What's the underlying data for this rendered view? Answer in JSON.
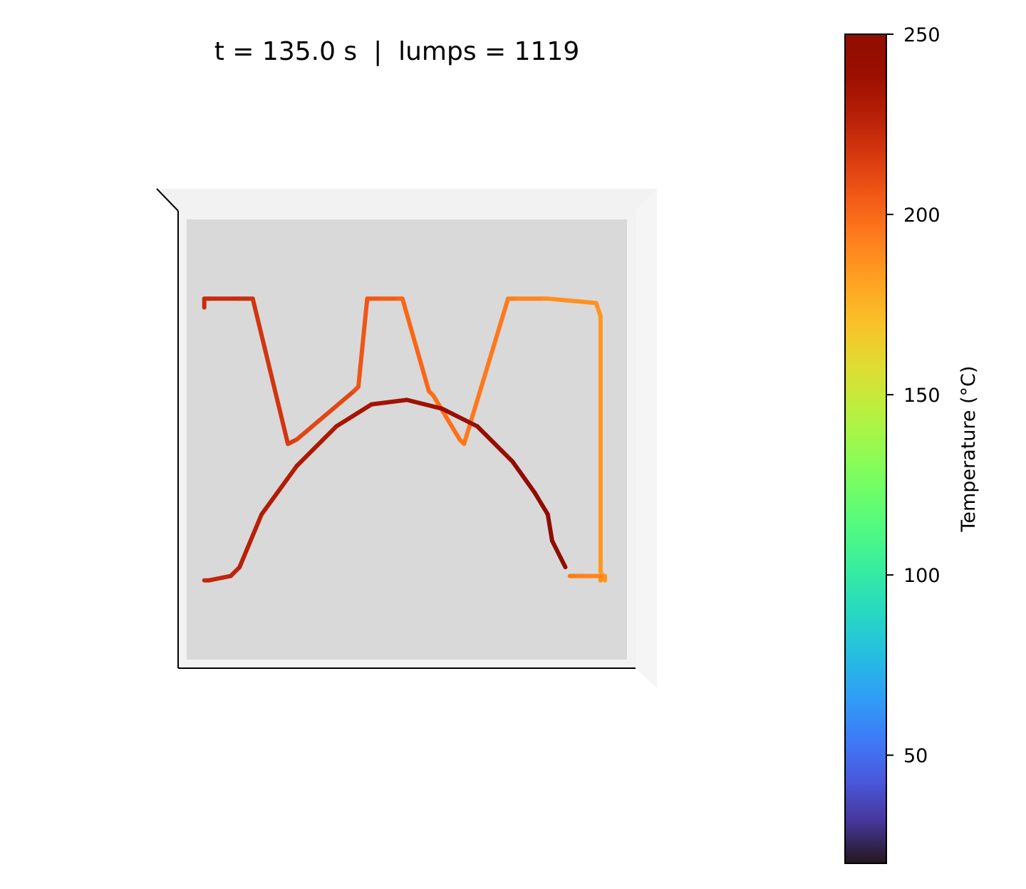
{
  "title": "t = 135.0 s  |  lumps = 1119",
  "chart_data": {
    "type": "line",
    "view": "3d-axes-top-down",
    "title": "t = 135.0 s  |  lumps = 1119",
    "grid": false,
    "axes_ticks_visible": false,
    "colormap": "turbo",
    "colorbar": {
      "label": "Temperature (°C)",
      "vmin": 20,
      "vmax": 250,
      "ticks": [
        50,
        100,
        150,
        200,
        250
      ],
      "tick_labels": [
        "50",
        "100",
        "150",
        "200",
        "250"
      ],
      "placement": "right"
    },
    "colors": {
      "pane_back": "#d9d9d9",
      "pane_side": "#f2f2f2",
      "axis_line": "#000000"
    },
    "series": [
      {
        "part": "outer-profile",
        "x": [
          0.04,
          0.04,
          0.05,
          0.12,
          0.15,
          0.23,
          0.25,
          0.38,
          0.39,
          0.41,
          0.44,
          0.48,
          0.49,
          0.55,
          0.56,
          0.62,
          0.63,
          0.73,
          0.75,
          0.81,
          0.82,
          0.93,
          0.94,
          0.94,
          0.95,
          0.95,
          0.94,
          0.94,
          0.9,
          0.88,
          0.87
        ],
        "y": [
          0.8,
          0.82,
          0.82,
          0.82,
          0.82,
          0.49,
          0.5,
          0.61,
          0.62,
          0.82,
          0.82,
          0.82,
          0.82,
          0.61,
          0.6,
          0.5,
          0.49,
          0.82,
          0.82,
          0.82,
          0.82,
          0.81,
          0.78,
          0.2,
          0.18,
          0.19,
          0.18,
          0.19,
          0.19,
          0.19,
          0.19
        ],
        "temperature": [
          220,
          222,
          222,
          221,
          220,
          216,
          214,
          209,
          207,
          206,
          205,
          203,
          202,
          200,
          199,
          197,
          196,
          194,
          192,
          190,
          188,
          186,
          185,
          184,
          184,
          186,
          188,
          190,
          192,
          194,
          195
        ]
      },
      {
        "part": "inner-arch",
        "x": [
          0.04,
          0.05,
          0.1,
          0.12,
          0.17,
          0.25,
          0.34,
          0.42,
          0.5,
          0.58,
          0.66,
          0.74,
          0.79,
          0.82,
          0.83,
          0.86
        ],
        "y": [
          0.18,
          0.18,
          0.19,
          0.21,
          0.33,
          0.44,
          0.53,
          0.58,
          0.59,
          0.57,
          0.53,
          0.45,
          0.38,
          0.33,
          0.27,
          0.21
        ],
        "temperature": [
          222,
          223,
          224,
          226,
          228,
          230,
          232,
          234,
          236,
          238,
          240,
          243,
          246,
          248,
          250,
          250
        ]
      }
    ]
  }
}
